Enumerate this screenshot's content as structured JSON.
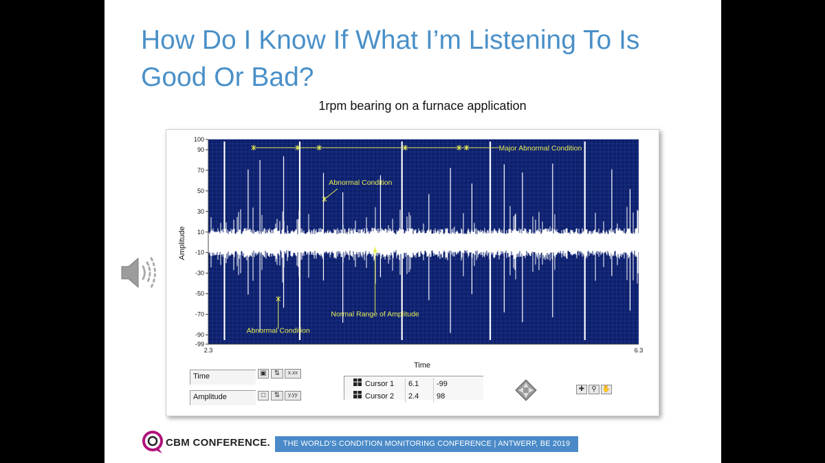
{
  "slide": {
    "title_line1": "How Do I Know If What I’m Listening To Is",
    "title_line2": "Good Or Bad?",
    "subtitle": "1rpm bearing on a furnace application"
  },
  "chart_data": {
    "type": "line",
    "xlabel": "Time",
    "ylabel": "Amplitude",
    "xlim": [
      2.3,
      6.3
    ],
    "ylim": [
      -99,
      100
    ],
    "x_tick_labels": [
      "2.3",
      "6.3"
    ],
    "y_ticks": [
      100,
      90,
      70,
      50,
      30,
      10,
      -10,
      -30,
      -50,
      -70,
      -90,
      -99
    ],
    "grid": true,
    "annotations": [
      {
        "text": "Major Abnormal Condition",
        "x": 4.75,
        "y": 92
      },
      {
        "text": "Abnormal Condition",
        "x": 3.55,
        "y": 42
      },
      {
        "text": "Normal Range of Amplitude",
        "x": 3.85,
        "y": -5
      },
      {
        "text": "Abnormal Condition",
        "x": 2.95,
        "y": -55
      }
    ]
  },
  "controls": {
    "time_label": "Time",
    "amplitude_label": "Amplitude",
    "x_format_button": "x.xx",
    "y_format_button": "y.yy",
    "cursors": [
      {
        "name": "Cursor 1",
        "x": "6.1",
        "y": "-99"
      },
      {
        "name": "Cursor 2",
        "x": "2.4",
        "y": "98"
      }
    ]
  },
  "footer": {
    "logo_text": "CBM CONFERENCE.",
    "banner_text": "THE WORLD’S CONDITION MONITORING CONFERENCE  |  ANTWERP, BE  2019"
  },
  "colors": {
    "plot_bg": "#0c1f6b",
    "trace": "#ffffff",
    "annotation": "#e8ef55",
    "title": "#4a90c8",
    "banner": "#4a8ac8"
  }
}
